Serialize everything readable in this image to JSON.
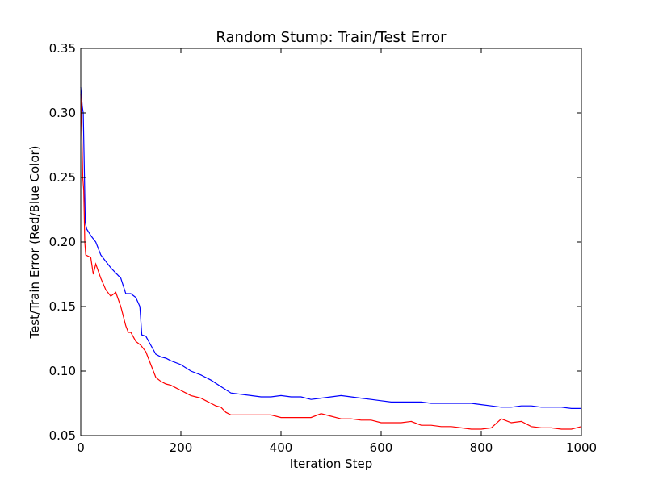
{
  "chart_data": {
    "type": "line",
    "title": "Random Stump: Train/Test Error",
    "xlabel": "Iteration Step",
    "ylabel": "Test/Train Error (Red/Blue Color)",
    "xlim": [
      0,
      1000
    ],
    "ylim": [
      0.05,
      0.35
    ],
    "xticks": [
      0,
      200,
      400,
      600,
      800,
      1000
    ],
    "xtick_labels": [
      "0",
      "200",
      "400",
      "600",
      "800",
      "1000"
    ],
    "yticks": [
      0.05,
      0.1,
      0.15,
      0.2,
      0.25,
      0.3,
      0.35
    ],
    "ytick_labels": [
      "0.05",
      "0.10",
      "0.15",
      "0.20",
      "0.25",
      "0.30",
      "0.35"
    ],
    "grid": false,
    "series": [
      {
        "color": "#0000ff",
        "x": [
          0,
          3,
          5,
          7,
          9,
          12,
          20,
          30,
          40,
          50,
          60,
          70,
          80,
          90,
          100,
          110,
          118,
          122,
          130,
          140,
          150,
          160,
          170,
          180,
          200,
          220,
          240,
          260,
          280,
          300,
          320,
          340,
          360,
          380,
          400,
          420,
          440,
          460,
          480,
          500,
          520,
          540,
          560,
          580,
          600,
          620,
          640,
          660,
          680,
          700,
          720,
          740,
          760,
          780,
          800,
          820,
          840,
          860,
          880,
          900,
          920,
          940,
          960,
          980,
          1000
        ],
        "y": [
          0.32,
          0.305,
          0.3,
          0.26,
          0.215,
          0.21,
          0.205,
          0.2,
          0.19,
          0.185,
          0.18,
          0.176,
          0.172,
          0.16,
          0.16,
          0.157,
          0.15,
          0.128,
          0.127,
          0.12,
          0.113,
          0.111,
          0.11,
          0.108,
          0.105,
          0.1,
          0.097,
          0.093,
          0.088,
          0.083,
          0.082,
          0.081,
          0.08,
          0.08,
          0.081,
          0.08,
          0.08,
          0.078,
          0.079,
          0.08,
          0.081,
          0.08,
          0.079,
          0.078,
          0.077,
          0.076,
          0.076,
          0.076,
          0.076,
          0.075,
          0.075,
          0.075,
          0.075,
          0.075,
          0.074,
          0.073,
          0.072,
          0.072,
          0.073,
          0.073,
          0.072,
          0.072,
          0.072,
          0.071,
          0.071
        ]
      },
      {
        "color": "#ff0000",
        "x": [
          0,
          2,
          4,
          6,
          8,
          10,
          20,
          25,
          30,
          40,
          50,
          60,
          70,
          80,
          90,
          95,
          100,
          110,
          120,
          130,
          140,
          150,
          160,
          170,
          180,
          190,
          200,
          210,
          220,
          230,
          240,
          250,
          260,
          270,
          280,
          290,
          300,
          320,
          340,
          360,
          380,
          400,
          420,
          440,
          460,
          480,
          500,
          520,
          540,
          560,
          580,
          600,
          620,
          640,
          660,
          680,
          700,
          720,
          740,
          760,
          780,
          800,
          820,
          840,
          860,
          880,
          900,
          920,
          940,
          960,
          980,
          1000
        ],
        "y": [
          0.315,
          0.29,
          0.25,
          0.24,
          0.2,
          0.19,
          0.188,
          0.175,
          0.183,
          0.172,
          0.163,
          0.158,
          0.161,
          0.15,
          0.135,
          0.13,
          0.13,
          0.123,
          0.12,
          0.115,
          0.105,
          0.095,
          0.092,
          0.09,
          0.089,
          0.087,
          0.085,
          0.083,
          0.081,
          0.08,
          0.079,
          0.077,
          0.075,
          0.073,
          0.072,
          0.068,
          0.066,
          0.066,
          0.066,
          0.066,
          0.066,
          0.064,
          0.064,
          0.064,
          0.064,
          0.067,
          0.065,
          0.063,
          0.063,
          0.062,
          0.062,
          0.06,
          0.06,
          0.06,
          0.061,
          0.058,
          0.058,
          0.057,
          0.057,
          0.056,
          0.055,
          0.055,
          0.056,
          0.063,
          0.06,
          0.061,
          0.057,
          0.056,
          0.056,
          0.055,
          0.055,
          0.057
        ]
      }
    ]
  }
}
